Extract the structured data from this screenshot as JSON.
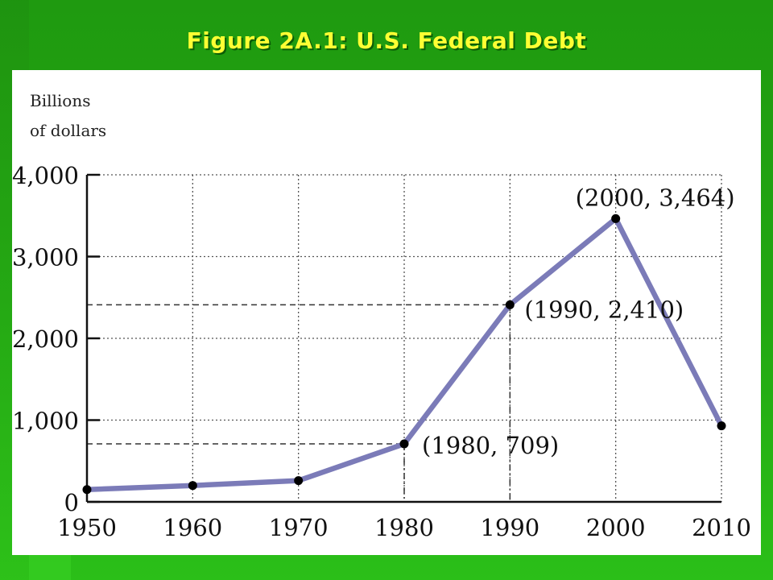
{
  "slide": {
    "title": "Figure 2A.1: U.S. Federal Debt"
  },
  "colors": {
    "background": "#22a812",
    "title": "#ffff33",
    "line": "#7b7bb8",
    "point": "#000000"
  },
  "chart_data": {
    "type": "line",
    "ylabel": "Billions of dollars",
    "ylabel_lines": [
      "Billions",
      "of dollars"
    ],
    "xlim": [
      1950,
      2010
    ],
    "ylim": [
      0,
      4000
    ],
    "x_ticks": [
      1950,
      1960,
      1970,
      1980,
      1990,
      2000,
      2010
    ],
    "x_tick_labels": [
      "1950",
      "1960",
      "1970",
      "1980",
      "1990",
      "2000",
      "2010"
    ],
    "y_ticks": [
      0,
      1000,
      2000,
      3000,
      4000
    ],
    "y_tick_labels": [
      "0",
      "1,000",
      "2,000",
      "3,000",
      "4,000"
    ],
    "grid": true,
    "series": [
      {
        "x": [
          1950,
          1960,
          1970,
          1980,
          1990,
          2000,
          2010
        ],
        "y": [
          150,
          200,
          260,
          709,
          2410,
          3464,
          930
        ]
      }
    ],
    "annotations": [
      {
        "x": 1980,
        "y": 709,
        "text": "(1980, 709)"
      },
      {
        "x": 1990,
        "y": 2410,
        "text": "(1990, 2,410)"
      },
      {
        "x": 2000,
        "y": 3464,
        "text": "(2000, 3,464)"
      }
    ]
  }
}
